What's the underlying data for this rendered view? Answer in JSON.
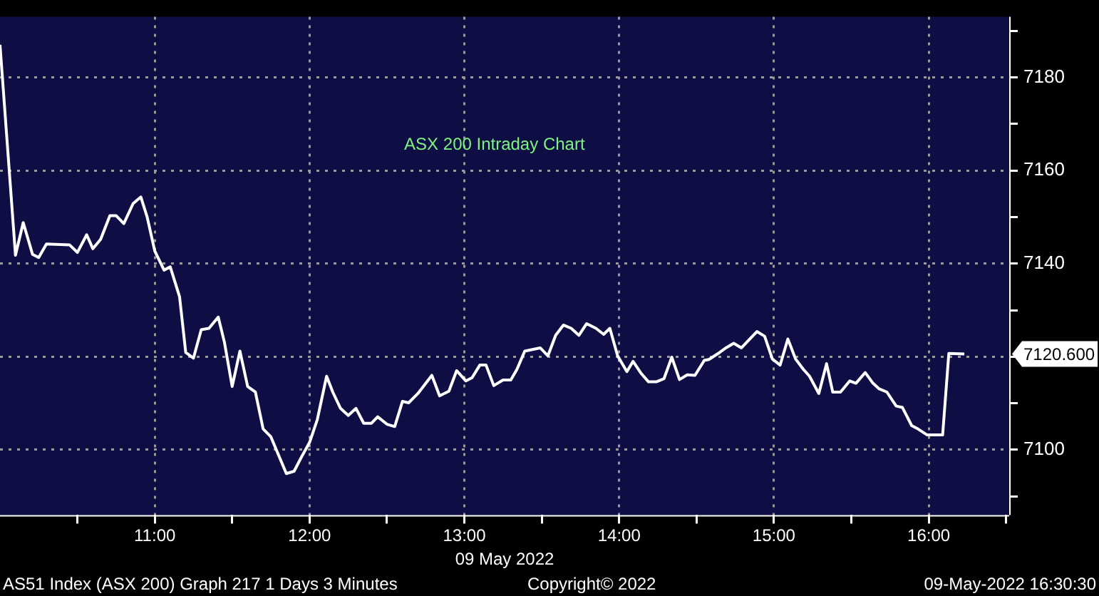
{
  "chart_data": {
    "type": "line",
    "title": "ASX 200 Intraday Chart",
    "xlabel": "09 May 2022",
    "x": [
      10.0,
      10.1,
      10.15,
      10.21,
      10.25,
      10.3,
      10.45,
      10.5,
      10.56,
      10.6,
      10.65,
      10.71,
      10.75,
      10.8,
      10.86,
      10.91,
      10.95,
      11.0,
      11.06,
      11.1,
      11.16,
      11.2,
      11.25,
      11.3,
      11.35,
      11.41,
      11.45,
      11.5,
      11.55,
      11.6,
      11.65,
      11.7,
      11.75,
      11.85,
      11.9,
      11.95,
      12.0,
      12.05,
      12.11,
      12.15,
      12.2,
      12.25,
      12.3,
      12.35,
      12.4,
      12.44,
      12.5,
      12.55,
      12.6,
      12.64,
      12.7,
      12.79,
      12.84,
      12.9,
      12.95,
      13.01,
      13.05,
      13.1,
      13.14,
      13.19,
      13.25,
      13.3,
      13.34,
      13.39,
      13.49,
      13.54,
      13.59,
      13.64,
      13.69,
      13.74,
      13.79,
      13.85,
      13.9,
      13.94,
      13.99,
      14.05,
      14.09,
      14.14,
      14.19,
      14.24,
      14.29,
      14.34,
      14.39,
      14.44,
      14.49,
      14.55,
      14.58,
      14.64,
      14.69,
      14.74,
      14.79,
      14.89,
      14.94,
      14.99,
      15.04,
      15.09,
      15.14,
      15.19,
      15.23,
      15.29,
      15.34,
      15.38,
      15.43,
      15.49,
      15.53,
      15.59,
      15.64,
      15.68,
      15.73,
      15.79,
      15.83,
      15.89,
      15.93,
      15.99,
      16.09,
      16.13,
      16.23
    ],
    "series": [
      {
        "color": "#ffffff",
        "values": [
          7187,
          7141.8,
          7148.8,
          7142,
          7141.3,
          7144.2,
          7144,
          7142.4,
          7146.2,
          7143.2,
          7145.2,
          7150.3,
          7150.3,
          7148.6,
          7152.9,
          7154.3,
          7150.1,
          7142.7,
          7138.6,
          7139.3,
          7132.9,
          7120.9,
          7119.7,
          7125.8,
          7126.1,
          7128.5,
          7123.1,
          7113.6,
          7121.2,
          7113.6,
          7112.4,
          7104.5,
          7102.8,
          7094.9,
          7095.4,
          7098.6,
          7101.6,
          7106.5,
          7115.8,
          7112.4,
          7108.9,
          7107.4,
          7108.9,
          7105.7,
          7105.7,
          7107.1,
          7105.5,
          7105,
          7110.4,
          7110.1,
          7112.1,
          7116,
          7111.6,
          7112.6,
          7117,
          7114.8,
          7115.5,
          7118.2,
          7118.2,
          7113.8,
          7115,
          7115,
          7117.3,
          7121.2,
          7121.9,
          7120.2,
          7124.6,
          7126.8,
          7126.1,
          7124.6,
          7127.1,
          7126.1,
          7124.8,
          7126.1,
          7120.2,
          7116.8,
          7119,
          7116.5,
          7114.6,
          7114.6,
          7115.3,
          7119.9,
          7115.1,
          7116.1,
          7116,
          7119.2,
          7119.4,
          7120.7,
          7121.9,
          7122.9,
          7121.9,
          7125.4,
          7124.4,
          7119.5,
          7118.2,
          7123.8,
          7119.5,
          7117.3,
          7115.8,
          7112.1,
          7118.5,
          7112.4,
          7112.4,
          7114.8,
          7114.3,
          7116.6,
          7114.3,
          7113.1,
          7112.4,
          7109.4,
          7109.1,
          7105.2,
          7104.5,
          7103.2,
          7103.2,
          7120.7,
          7120.6
        ]
      }
    ],
    "xlim": [
      10.0,
      16.52
    ],
    "xticks": [
      {
        "value": 10.5,
        "label": null
      },
      {
        "value": 11,
        "label": "11:00"
      },
      {
        "value": 11.5,
        "label": null
      },
      {
        "value": 12,
        "label": "12:00"
      },
      {
        "value": 12.5,
        "label": null
      },
      {
        "value": 13,
        "label": "13:00"
      },
      {
        "value": 13.5,
        "label": null
      },
      {
        "value": 14,
        "label": "14:00"
      },
      {
        "value": 14.5,
        "label": null
      },
      {
        "value": 15,
        "label": "15:00"
      },
      {
        "value": 15.5,
        "label": null
      },
      {
        "value": 16,
        "label": "16:00"
      },
      {
        "value": 16.5,
        "label": null
      }
    ],
    "ylim": [
      7086,
      7193
    ],
    "yticks": [
      {
        "value": 7090,
        "label": null
      },
      7100,
      {
        "value": 7110,
        "label": null
      },
      {
        "value": 7120,
        "label": null
      },
      {
        "value": 7130,
        "label": null
      },
      7140,
      {
        "value": 7150,
        "label": null
      },
      7160,
      {
        "value": 7170,
        "label": null
      },
      7180,
      {
        "value": 7190,
        "label": null
      }
    ],
    "grid": true,
    "marker": "none",
    "line_style": "solid",
    "legend": false,
    "annotations": [
      "7120.600",
      "AS51 Index (ASX 200) Graph 217 1 Days 3 Minutes",
      "Copyright© 2022",
      "09-May-2022 16:30:30"
    ]
  }
}
